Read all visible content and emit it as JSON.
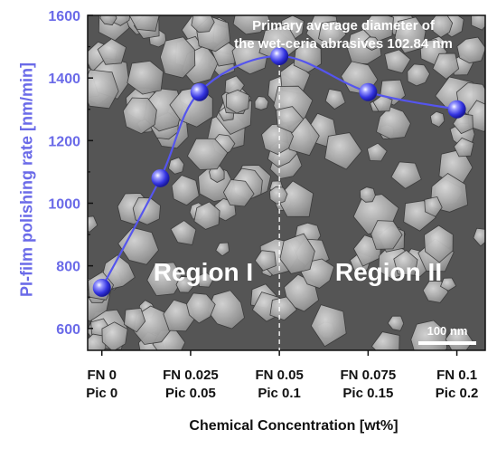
{
  "chart_data": {
    "type": "line",
    "title": "",
    "annotation_lines": [
      "Primary average diameter of",
      "the  wet-ceria abrasives 102.84 nm"
    ],
    "xlabel": "Chemical Concentration [wt%]",
    "ylabel": "PI-film polishing rate [nm/min]",
    "ylim": [
      530,
      1600
    ],
    "yticks": [
      600,
      800,
      1000,
      1200,
      1400,
      1600
    ],
    "xticks": [
      {
        "x": 0,
        "line1": "FN 0",
        "line2": "Pic 0"
      },
      {
        "x": 0.025,
        "line1": "FN 0.025",
        "line2": "Pic 0.05"
      },
      {
        "x": 0.05,
        "line1": "FN 0.05",
        "line2": "Pic 0.1"
      },
      {
        "x": 0.075,
        "line1": "FN 0.075",
        "line2": "Pic 0.15"
      },
      {
        "x": 0.1,
        "line1": "FN 0.1",
        "line2": "Pic 0.2"
      }
    ],
    "xlim": [
      -0.004,
      0.108
    ],
    "series": [
      {
        "x": [
          0,
          0.0165,
          0.0275,
          0.05,
          0.075,
          0.1
        ],
        "y": [
          730,
          1080,
          1355,
          1470,
          1355,
          1300
        ],
        "color": "#5555ee"
      }
    ],
    "regions": [
      "Region I",
      "Region II"
    ],
    "scale_bar": "100 nm",
    "divider_x": 0.05,
    "background": "SEM micrograph of ceria abrasives",
    "grid": false
  }
}
